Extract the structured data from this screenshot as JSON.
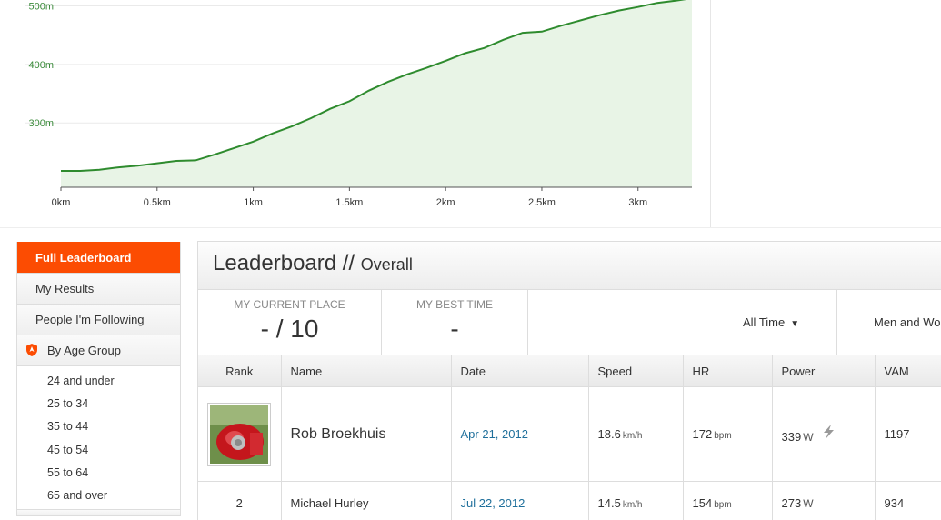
{
  "chart_data": {
    "type": "area",
    "x": [
      0,
      0.1,
      0.2,
      0.3,
      0.4,
      0.5,
      0.6,
      0.7,
      0.8,
      0.9,
      1.0,
      1.1,
      1.2,
      1.3,
      1.4,
      1.5,
      1.6,
      1.7,
      1.8,
      1.9,
      2.0,
      2.1,
      2.2,
      2.3,
      2.4,
      2.5,
      2.6,
      2.7,
      2.8,
      2.9,
      3.0,
      3.1,
      3.2,
      3.28
    ],
    "y": [
      218,
      218,
      220,
      224,
      227,
      231,
      235,
      236,
      246,
      257,
      268,
      282,
      294,
      308,
      324,
      337,
      355,
      370,
      383,
      394,
      406,
      419,
      428,
      442,
      454,
      456,
      466,
      475,
      484,
      492,
      498,
      505,
      509,
      513
    ],
    "xticks": [
      "0km",
      "0.5km",
      "1km",
      "1.5km",
      "2km",
      "2.5km",
      "3km"
    ],
    "yticks": [
      "300m",
      "400m",
      "500m"
    ],
    "xlim": [
      0,
      3.28
    ],
    "ylim": [
      190,
      510
    ],
    "colors": {
      "line": "#2e8b2e",
      "fill": "#e8f4e6",
      "tick_text": "#3a8a3a",
      "grid": "#eaeaea"
    },
    "grid": true
  },
  "sidebar": {
    "items": [
      {
        "label": "Full Leaderboard",
        "active": true
      },
      {
        "label": "My Results"
      },
      {
        "label": "People I'm Following"
      },
      {
        "label": "By Age Group",
        "icon": "orange-shield-icon"
      }
    ],
    "age_groups": [
      "24 and under",
      "25 to 34",
      "35 to 44",
      "45 to 54",
      "55 to 64",
      "65 and over"
    ]
  },
  "leaderboard": {
    "title": "Leaderboard //",
    "subtitle": "Overall",
    "my_place_label": "My Current Place",
    "my_place_value": "- / 10",
    "best_time_label": "My Best Time",
    "best_time_value": "-",
    "filter_time": "All Time",
    "filter_gender": "Men and Women",
    "columns": [
      "Rank",
      "Name",
      "Date",
      "Speed",
      "HR",
      "Power",
      "VAM"
    ],
    "rows": [
      {
        "rank": "",
        "avatar": "cyclist-avatar",
        "name": "Rob Broekhuis",
        "date": "Apr 21, 2012",
        "speed": "18.6",
        "speed_unit": "km/h",
        "hr": "172",
        "hr_unit": "bpm",
        "power": "339",
        "power_unit": "W",
        "power_icon": "lightning-bolt-icon",
        "vam": "1197"
      },
      {
        "rank": "2",
        "name": "Michael Hurley",
        "date": "Jul 22, 2012",
        "speed": "14.5",
        "speed_unit": "km/h",
        "hr": "154",
        "hr_unit": "bpm",
        "power": "273",
        "power_unit": "W",
        "vam": "934"
      }
    ]
  },
  "colors": {
    "accent": "#fc4c02",
    "link": "#1e6f9b"
  }
}
